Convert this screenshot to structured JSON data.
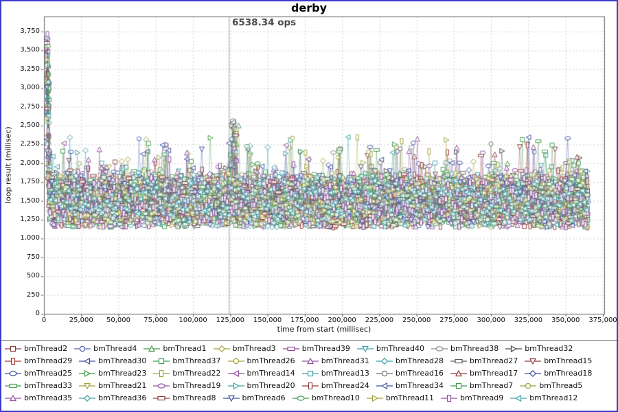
{
  "window": {
    "border_color": "#3a3ace",
    "background": "#ffffff"
  },
  "chart_data": {
    "type": "scatter",
    "title": "derby",
    "annotation": {
      "text": "6538.34 ops",
      "x": 124000
    },
    "xlabel": "time from start (millisec)",
    "ylabel": "loop result (millisec)",
    "xlim": [
      0,
      375000
    ],
    "ylim": [
      0,
      3750
    ],
    "x_ticks": [
      0,
      25000,
      50000,
      75000,
      100000,
      125000,
      150000,
      175000,
      200000,
      225000,
      250000,
      275000,
      300000,
      325000,
      350000,
      375000
    ],
    "y_ticks": [
      0,
      250,
      500,
      750,
      1000,
      1250,
      1500,
      1750,
      2000,
      2250,
      2500,
      2750,
      3000,
      3250,
      3500,
      3750
    ],
    "grid": "dashed",
    "legend_position": "bottom",
    "series": [
      {
        "name": "bmThread2",
        "shape": "square",
        "color": "#8f3b3b"
      },
      {
        "name": "bmThread4",
        "shape": "circle",
        "color": "#5060b2"
      },
      {
        "name": "bmThread1",
        "shape": "triangle-up",
        "color": "#3f9b4a"
      },
      {
        "name": "bmThread3",
        "shape": "diamond",
        "color": "#a2a23e"
      },
      {
        "name": "bmThread39",
        "shape": "rect-h",
        "color": "#96459c"
      },
      {
        "name": "bmThread40",
        "shape": "triangle-down",
        "color": "#3aa0a5"
      },
      {
        "name": "bmThread38",
        "shape": "ellipse",
        "color": "#8a8a8a"
      },
      {
        "name": "bmThread32",
        "shape": "triangle-right",
        "color": "#474747"
      },
      {
        "name": "bmThread29",
        "shape": "rect-v",
        "color": "#a93636"
      },
      {
        "name": "bmThread30",
        "shape": "triangle-left",
        "color": "#3d4e9e"
      },
      {
        "name": "bmThread37",
        "shape": "square",
        "color": "#3f9b4a"
      },
      {
        "name": "bmThread26",
        "shape": "circle",
        "color": "#a2a23e"
      },
      {
        "name": "bmThread31",
        "shape": "triangle-up",
        "color": "#8f4f9f"
      },
      {
        "name": "bmThread28",
        "shape": "diamond",
        "color": "#3aa0a5"
      },
      {
        "name": "bmThread27",
        "shape": "rect-h",
        "color": "#5a5a5a"
      },
      {
        "name": "bmThread15",
        "shape": "triangle-down",
        "color": "#8f3b3b"
      },
      {
        "name": "bmThread25",
        "shape": "ellipse",
        "color": "#3d4e9e"
      },
      {
        "name": "bmThread23",
        "shape": "triangle-right",
        "color": "#3f9b4a"
      },
      {
        "name": "bmThread22",
        "shape": "rect-v",
        "color": "#a2a23e"
      },
      {
        "name": "bmThread14",
        "shape": "triangle-left",
        "color": "#8f4f9f"
      },
      {
        "name": "bmThread13",
        "shape": "square",
        "color": "#3aa0a5"
      },
      {
        "name": "bmThread16",
        "shape": "circle",
        "color": "#6e6e6e"
      },
      {
        "name": "bmThread17",
        "shape": "triangle-up",
        "color": "#8f3b3b"
      },
      {
        "name": "bmThread18",
        "shape": "diamond",
        "color": "#3d4e9e"
      },
      {
        "name": "bmThread33",
        "shape": "rect-h",
        "color": "#3f9b4a"
      },
      {
        "name": "bmThread21",
        "shape": "triangle-down",
        "color": "#a2a23e"
      },
      {
        "name": "bmThread19",
        "shape": "ellipse",
        "color": "#8f4f9f"
      },
      {
        "name": "bmThread20",
        "shape": "triangle-right",
        "color": "#3aa0a5"
      },
      {
        "name": "bmThread24",
        "shape": "rect-v",
        "color": "#8f3b3b"
      },
      {
        "name": "bmThread34",
        "shape": "triangle-left",
        "color": "#3d4e9e"
      },
      {
        "name": "bmThread7",
        "shape": "square",
        "color": "#3f9b4a"
      },
      {
        "name": "bmThread5",
        "shape": "circle",
        "color": "#a2a23e"
      },
      {
        "name": "bmThread35",
        "shape": "triangle-up",
        "color": "#8f4f9f"
      },
      {
        "name": "bmThread36",
        "shape": "diamond",
        "color": "#3aa0a5"
      },
      {
        "name": "bmThread8",
        "shape": "rect-h",
        "color": "#8f3b3b"
      },
      {
        "name": "bmThread6",
        "shape": "triangle-down",
        "color": "#3d4e9e"
      },
      {
        "name": "bmThread10",
        "shape": "ellipse",
        "color": "#3f9b4a"
      },
      {
        "name": "bmThread11",
        "shape": "triangle-right",
        "color": "#a2a23e"
      },
      {
        "name": "bmThread9",
        "shape": "rect-v",
        "color": "#8f4f9f"
      },
      {
        "name": "bmThread12",
        "shape": "triangle-left",
        "color": "#3aa0a5"
      }
    ],
    "synthesis": {
      "x_start": 2000,
      "x_end": 365000,
      "step_ms": 1500,
      "band_mean": 1500,
      "band_std": 165,
      "band_min": 1150,
      "band_max_typical": 2120,
      "outlier_rate": 0.012,
      "outlier_y_range": [
        1950,
        2350
      ],
      "start_spike": {
        "x": 2200,
        "y_range": [
          3000,
          3720
        ]
      },
      "mid_spike": {
        "x_range": [
          125500,
          129500
        ],
        "y_range": [
          1950,
          2570
        ],
        "series_fraction": 0.5
      },
      "seed": 7
    }
  }
}
